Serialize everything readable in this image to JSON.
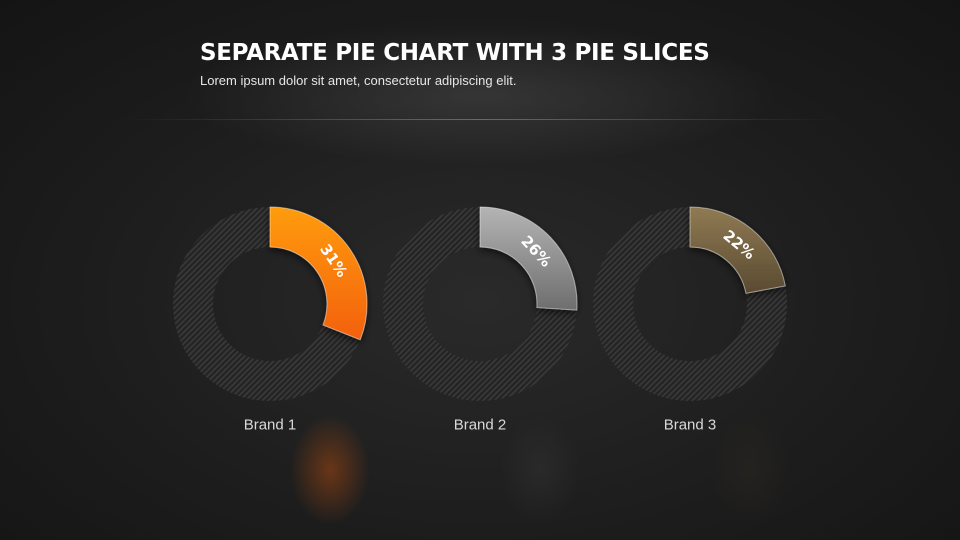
{
  "header": {
    "title": "SEPARATE PIE CHART WITH 3 PIE SLICES",
    "subtitle": "Lorem ipsum dolor sit amet, consectetur adipiscing elit."
  },
  "chart_data": {
    "type": "pie",
    "title": "SEPARATE PIE CHART WITH 3 PIE SLICES",
    "subtitle": "Lorem ipsum dolor sit amet, consectetur adipiscing elit.",
    "categories": [
      "Brand 1",
      "Brand 2",
      "Brand 3"
    ],
    "values": [
      31,
      26,
      22
    ],
    "value_labels": [
      "31%",
      "26%",
      "22%"
    ],
    "max": 100,
    "colors": [
      [
        "#ff9c0a",
        "#f36009"
      ],
      [
        "#b4b4b4",
        "#6e6e6e"
      ],
      [
        "#8f7a53",
        "#5a4a31"
      ]
    ],
    "track_color": "#3a3a3a"
  }
}
